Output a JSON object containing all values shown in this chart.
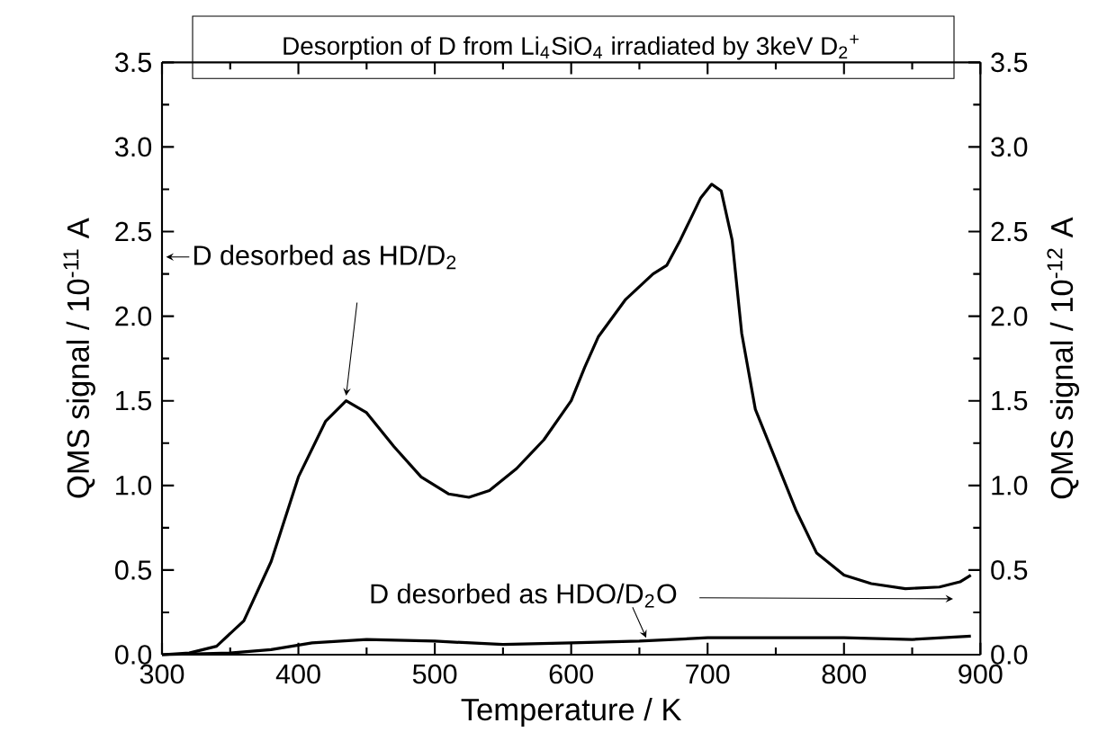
{
  "chart_data": {
    "type": "line",
    "title": "Desorption of D from Li$_{4}$SiO$_{4}$ irradiated by 3keV D$_{2}$$^{+}$",
    "xlabel": "Temperature / K",
    "ylabel": "QMS signal / 10$^{-11}$ A",
    "y2label": "QMS signal / 10$^{-12}$ A",
    "xlim": [
      300,
      900
    ],
    "ylim": [
      0,
      3.5
    ],
    "y2lim": [
      0,
      3.5
    ],
    "xticks": [
      300,
      400,
      500,
      600,
      700,
      800,
      900
    ],
    "yticks": [
      {
        "value": 0,
        "label": "0.0"
      },
      {
        "value": 0.5,
        "label": "0.5"
      },
      {
        "value": 1,
        "label": "1.0"
      },
      {
        "value": 1.5,
        "label": "1.5"
      },
      {
        "value": 2,
        "label": "2.0"
      },
      {
        "value": 2.5,
        "label": "2.5"
      },
      {
        "value": 3,
        "label": "3.0"
      },
      {
        "value": 3.5,
        "label": "3.5"
      }
    ],
    "y2ticks": [
      {
        "value": 0,
        "label": "0.0"
      },
      {
        "value": 0.5,
        "label": "0.5"
      },
      {
        "value": 1,
        "label": "1.0"
      },
      {
        "value": 1.5,
        "label": "1.5"
      },
      {
        "value": 2,
        "label": "2.0"
      },
      {
        "value": 2.5,
        "label": "2.5"
      },
      {
        "value": 3,
        "label": "3.0"
      },
      {
        "value": 3.5,
        "label": "3.5"
      }
    ],
    "series": [
      {
        "color": "#000000",
        "x": [
          300,
          320,
          340,
          360,
          380,
          400,
          420,
          435,
          450,
          470,
          490,
          510,
          525,
          540,
          560,
          580,
          600,
          610,
          620,
          640,
          660,
          670,
          680,
          695,
          703,
          710,
          718,
          725,
          735,
          750,
          765,
          780,
          800,
          820,
          845,
          870,
          885,
          893
        ],
        "values": [
          0,
          0.01,
          0.05,
          0.2,
          0.55,
          1.05,
          1.38,
          1.5,
          1.43,
          1.23,
          1.05,
          0.95,
          0.93,
          0.97,
          1.1,
          1.27,
          1.5,
          1.7,
          1.88,
          2.1,
          2.25,
          2.3,
          2.45,
          2.7,
          2.78,
          2.74,
          2.45,
          1.9,
          1.45,
          1.15,
          0.85,
          0.6,
          0.47,
          0.42,
          0.39,
          0.4,
          0.43,
          0.47
        ]
      },
      {
        "color": "#000000",
        "axis": "y2",
        "x": [
          300,
          350,
          380,
          410,
          450,
          500,
          550,
          600,
          650,
          700,
          750,
          800,
          850,
          893
        ],
        "values": [
          0,
          0.01,
          0.03,
          0.07,
          0.09,
          0.08,
          0.06,
          0.07,
          0.08,
          0.1,
          0.1,
          0.1,
          0.09,
          0.11
        ]
      }
    ],
    "annotations": [
      {
        "text": "D desorbed as HD/D$_{2}$",
        "x": 435,
        "y": 1.5
      },
      {
        "text": "D desorbed as HDO/D$_{2}$O",
        "x": 655,
        "y": 0.08
      }
    ]
  }
}
